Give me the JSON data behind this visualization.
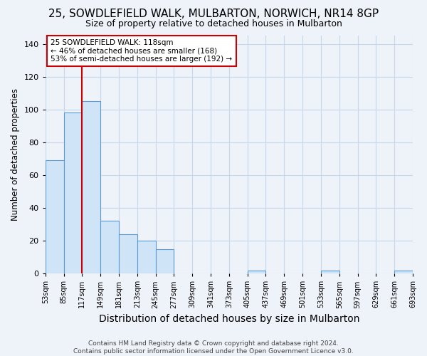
{
  "title": "25, SOWDLEFIELD WALK, MULBARTON, NORWICH, NR14 8GP",
  "subtitle": "Size of property relative to detached houses in Mulbarton",
  "xlabel": "Distribution of detached houses by size in Mulbarton",
  "ylabel": "Number of detached properties",
  "footer_line1": "Contains HM Land Registry data © Crown copyright and database right 2024.",
  "footer_line2": "Contains public sector information licensed under the Open Government Licence v3.0.",
  "bar_edges": [
    53,
    85,
    117,
    149,
    181,
    213,
    245,
    277,
    309,
    341,
    373,
    405,
    437,
    469,
    501,
    533,
    565,
    597,
    629,
    661,
    693
  ],
  "bar_heights": [
    69,
    98,
    105,
    32,
    24,
    20,
    15,
    0,
    0,
    0,
    0,
    2,
    0,
    0,
    0,
    2,
    0,
    0,
    0,
    2
  ],
  "bar_color": "#d0e4f7",
  "bar_edge_color": "#5b9bd5",
  "property_line_x": 117,
  "property_line_color": "#cc0000",
  "annotation_text": "25 SOWDLEFIELD WALK: 118sqm\n← 46% of detached houses are smaller (168)\n53% of semi-detached houses are larger (192) →",
  "annotation_box_color": "#ffffff",
  "annotation_box_edge_color": "#cc0000",
  "ylim": [
    0,
    145
  ],
  "yticks": [
    0,
    20,
    40,
    60,
    80,
    100,
    120,
    140
  ],
  "background_color": "#eef2f9",
  "grid_color": "#c8d8ec",
  "title_fontsize": 11,
  "subtitle_fontsize": 9,
  "xlabel_fontsize": 10,
  "ylabel_fontsize": 8.5,
  "xtick_fontsize": 7,
  "ytick_fontsize": 8,
  "footer_fontsize": 6.5
}
